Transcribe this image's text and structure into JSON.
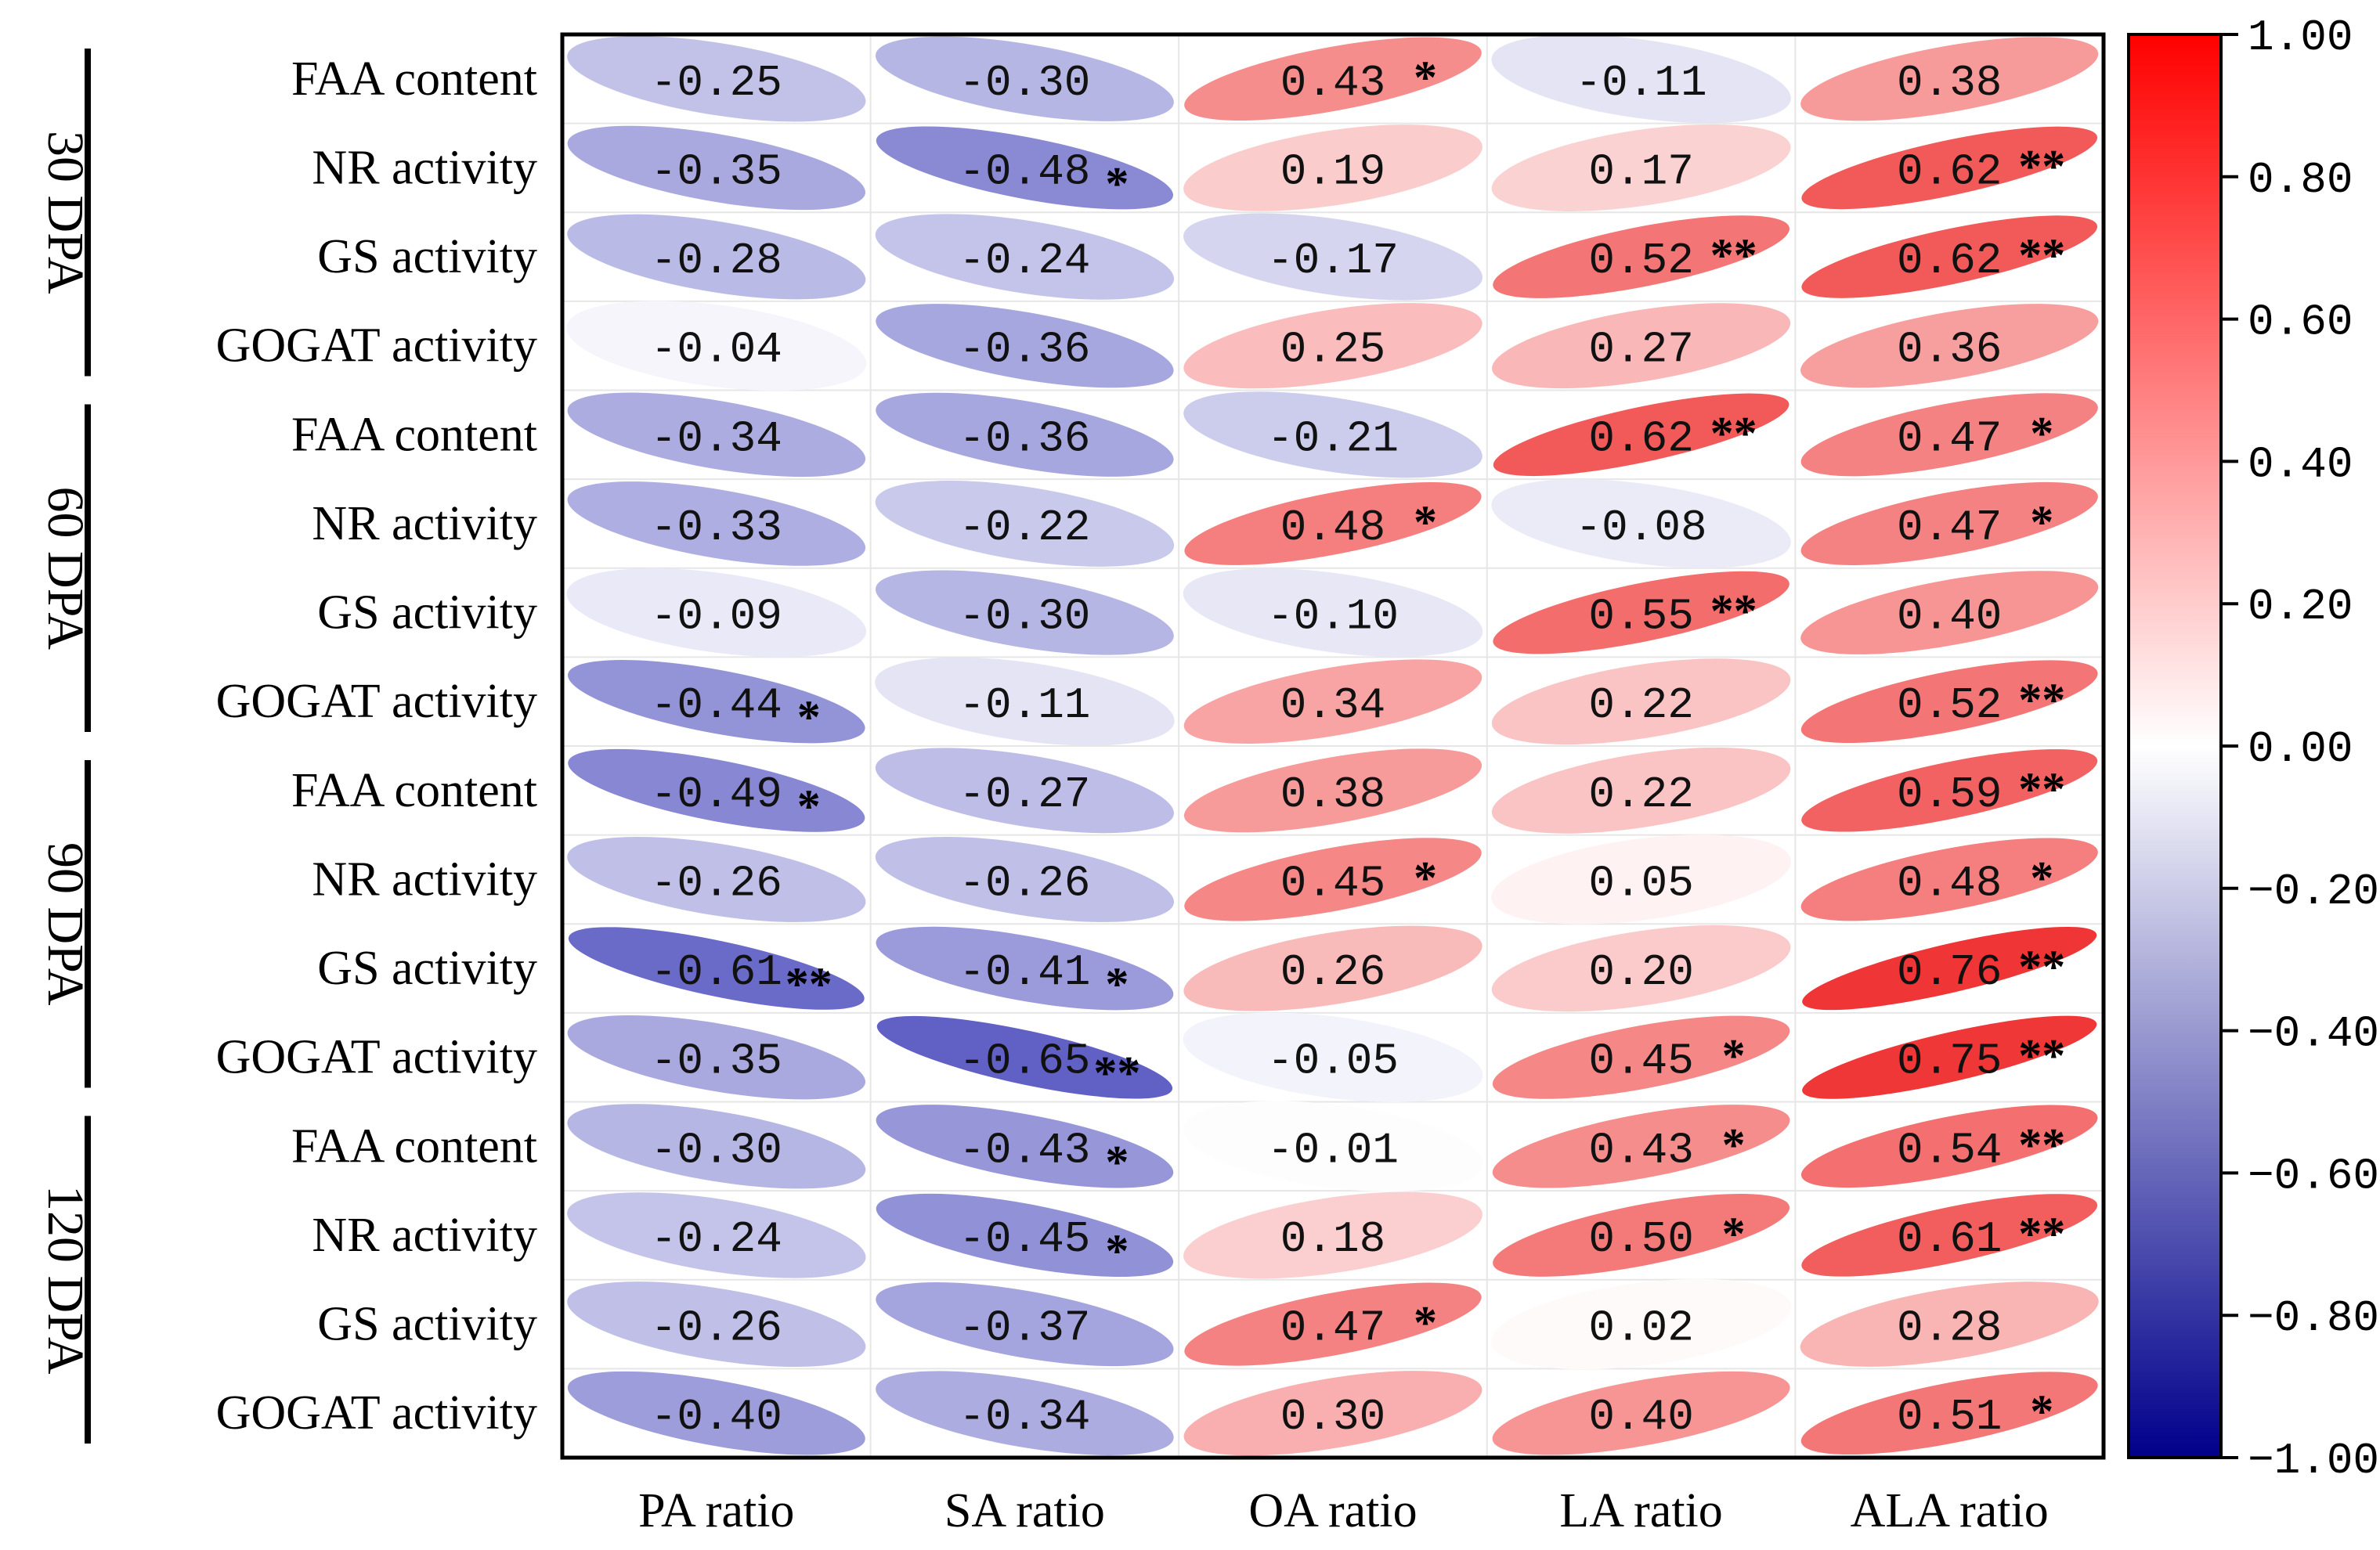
{
  "chart_data": {
    "type": "heatmap",
    "title": "",
    "columns": [
      "PA ratio",
      "SA ratio",
      "OA ratio",
      "LA ratio",
      "ALA ratio"
    ],
    "groups": [
      {
        "label": "30 DPA",
        "rows": [
          "FAA content",
          "NR activity",
          "GS activity",
          "GOGAT activity"
        ]
      },
      {
        "label": "60 DPA",
        "rows": [
          "FAA content",
          "NR activity",
          "GS activity",
          "GOGAT activity"
        ]
      },
      {
        "label": "90 DPA",
        "rows": [
          "FAA content",
          "NR activity",
          "GS activity",
          "GOGAT activity"
        ]
      },
      {
        "label": "120 DPA",
        "rows": [
          "FAA content",
          "NR activity",
          "GS activity",
          "GOGAT activity"
        ]
      }
    ],
    "values": [
      [
        -0.25,
        -0.3,
        0.43,
        -0.11,
        0.38
      ],
      [
        -0.35,
        -0.48,
        0.19,
        0.17,
        0.62
      ],
      [
        -0.28,
        -0.24,
        -0.17,
        0.52,
        0.62
      ],
      [
        -0.04,
        -0.36,
        0.25,
        0.27,
        0.36
      ],
      [
        -0.34,
        -0.36,
        -0.21,
        0.62,
        0.47
      ],
      [
        -0.33,
        -0.22,
        0.48,
        -0.08,
        0.47
      ],
      [
        -0.09,
        -0.3,
        -0.1,
        0.55,
        0.4
      ],
      [
        -0.44,
        -0.11,
        0.34,
        0.22,
        0.52
      ],
      [
        -0.49,
        -0.27,
        0.38,
        0.22,
        0.59
      ],
      [
        -0.26,
        -0.26,
        0.45,
        0.05,
        0.48
      ],
      [
        -0.61,
        -0.41,
        0.26,
        0.2,
        0.76
      ],
      [
        -0.35,
        -0.65,
        -0.05,
        0.45,
        0.75
      ],
      [
        -0.3,
        -0.43,
        -0.01,
        0.43,
        0.54
      ],
      [
        -0.24,
        -0.45,
        0.18,
        0.5,
        0.61
      ],
      [
        -0.26,
        -0.37,
        0.47,
        0.02,
        0.28
      ],
      [
        -0.4,
        -0.34,
        0.3,
        0.4,
        0.51
      ]
    ],
    "labels": [
      [
        "-0.25",
        "-0.30",
        "0.43",
        "-0.11",
        "0.38"
      ],
      [
        "-0.35",
        "-0.48",
        "0.19",
        "0.17",
        "0.62"
      ],
      [
        "-0.28",
        "-0.24",
        "-0.17",
        "0.52",
        "0.62"
      ],
      [
        "-0.04",
        "-0.36",
        "0.25",
        "0.27",
        "0.36"
      ],
      [
        "-0.34",
        "-0.36",
        "-0.21",
        "0.62",
        "0.47"
      ],
      [
        "-0.33",
        "-0.22",
        "0.48",
        "-0.08",
        "0.47"
      ],
      [
        "-0.09",
        "-0.30",
        "-0.10",
        "0.55",
        "0.40"
      ],
      [
        "-0.44",
        "-0.11",
        "0.34",
        "0.22",
        "0.52"
      ],
      [
        "-0.49",
        "-0.27",
        "0.38",
        "0.22",
        "0.59"
      ],
      [
        "-0.26",
        "-0.26",
        "0.45",
        "0.05",
        "0.48"
      ],
      [
        "-0.61",
        "-0.41",
        "0.26",
        "0.20",
        "0.76"
      ],
      [
        "-0.35",
        "-0.65",
        "-0.05",
        "0.45",
        "0.75"
      ],
      [
        "-0.30",
        "-0.43",
        "-0.01",
        "0.43",
        "0.54"
      ],
      [
        "-0.24",
        "-0.45",
        "0.18",
        "0.50",
        "0.61"
      ],
      [
        "-0.26",
        "-0.37",
        "0.47",
        "0.02",
        "0.28"
      ],
      [
        "-0.40",
        "-0.34",
        "0.30",
        "0.40",
        "0.51"
      ]
    ],
    "significance": [
      [
        "",
        "",
        "*",
        "",
        ""
      ],
      [
        "",
        "*",
        "",
        "",
        "**"
      ],
      [
        "",
        "",
        "",
        "**",
        "**"
      ],
      [
        "",
        "",
        "",
        "",
        ""
      ],
      [
        "",
        "",
        "",
        "**",
        "*"
      ],
      [
        "",
        "",
        "*",
        "",
        "*"
      ],
      [
        "",
        "",
        "",
        "**",
        ""
      ],
      [
        "*",
        "",
        "",
        "",
        "**"
      ],
      [
        "*",
        "",
        "",
        "",
        "**"
      ],
      [
        "",
        "",
        "*",
        "",
        "*"
      ],
      [
        "**",
        "*",
        "",
        "",
        "**"
      ],
      [
        "",
        "**",
        "",
        "*",
        "**"
      ],
      [
        "",
        "*",
        "",
        "*",
        "**"
      ],
      [
        "",
        "*",
        "",
        "*",
        "**"
      ],
      [
        "",
        "",
        "*",
        "",
        ""
      ],
      [
        "",
        "",
        "",
        "",
        "*"
      ]
    ],
    "colorbar": {
      "range": [
        -1.0,
        1.0
      ],
      "ticks": [
        1.0,
        0.8,
        0.6,
        0.4,
        0.2,
        0.0,
        -0.2,
        -0.4,
        -0.6,
        -0.8,
        -1.0
      ],
      "tick_labels": [
        "1.00",
        "0.80",
        "0.60",
        "0.40",
        "0.20",
        "0.00",
        "−0.20",
        "−0.40",
        "−0.60",
        "−0.80",
        "−1.00"
      ],
      "colors": {
        "low": "#00008b",
        "mid": "#ffffff",
        "high": "#ff0000"
      }
    },
    "colors": {
      "negative": "#3b3bb8",
      "positive": "#ee2a2a"
    }
  }
}
